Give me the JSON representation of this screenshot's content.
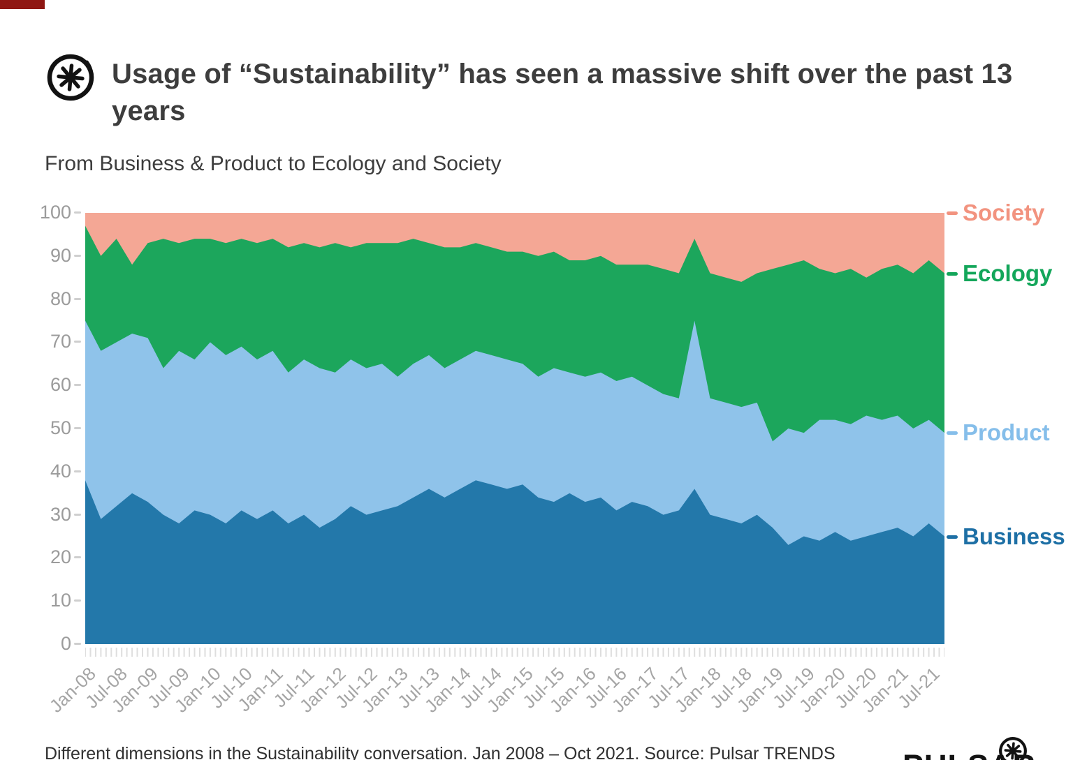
{
  "page": {
    "background": "#ffffff",
    "artifact_bar_color": "#8f1713"
  },
  "header": {
    "logo_icon": "pulsar-asterisk-logo",
    "title": "Usage of “Sustainability” has seen a massive shift over the past 13 years",
    "subtitle": "From Business & Product to Ecology and Society"
  },
  "footer": {
    "caption": "Different dimensions in the Sustainability conversation. Jan 2008 – Oct 2021. Source: Pulsar TRENDS",
    "brand_wordmark": "PULSAR",
    "brand_icon": "pulsar-asterisk-logo"
  },
  "chart_data": {
    "type": "area",
    "stacked": true,
    "unit": "% share",
    "x_start": "Jan-2008",
    "x_end": "Oct-2021",
    "x_step_months": 3,
    "ylim": [
      0,
      100
    ],
    "y_ticks": [
      0,
      10,
      20,
      30,
      40,
      50,
      60,
      70,
      80,
      90,
      100
    ],
    "grid": false,
    "legend_position": "right-edge",
    "x_tick_labels": [
      "Jan-08",
      "Jul-08",
      "Jan-09",
      "Jul-09",
      "Jan-10",
      "Jul-10",
      "Jan-11",
      "Jul-11",
      "Jan-12",
      "Jul-12",
      "Jan-13",
      "Jul-13",
      "Jan-14",
      "Jul-14",
      "Jan-15",
      "Jul-15",
      "Jan-16",
      "Jul-16",
      "Jan-17",
      "Jul-17",
      "Jan-18",
      "Jul-18",
      "Jan-19",
      "Jul-19",
      "Jan-20",
      "Jul-20",
      "Jan-21",
      "Jul-21"
    ],
    "series": [
      {
        "name": "Business",
        "color": "#2378aa",
        "label_color": "#1d6fa5",
        "values": [
          38,
          29,
          32,
          35,
          33,
          30,
          28,
          31,
          30,
          28,
          31,
          29,
          31,
          28,
          30,
          27,
          29,
          32,
          30,
          31,
          32,
          34,
          36,
          34,
          36,
          38,
          37,
          36,
          37,
          34,
          33,
          35,
          33,
          34,
          31,
          33,
          32,
          30,
          31,
          36,
          30,
          29,
          28,
          30,
          27,
          23,
          25,
          24,
          26,
          24,
          25,
          26,
          27,
          25,
          28,
          25
        ]
      },
      {
        "name": "Product",
        "color": "#8fc3ea",
        "label_color": "#85beea",
        "values": [
          37,
          39,
          38,
          37,
          38,
          34,
          40,
          35,
          40,
          39,
          38,
          37,
          37,
          35,
          36,
          37,
          34,
          34,
          34,
          34,
          30,
          31,
          31,
          30,
          30,
          30,
          30,
          30,
          28,
          28,
          31,
          28,
          29,
          29,
          30,
          29,
          28,
          28,
          26,
          39,
          27,
          27,
          27,
          26,
          20,
          27,
          24,
          28,
          26,
          27,
          28,
          26,
          26,
          25,
          24,
          24
        ]
      },
      {
        "name": "Ecology",
        "color": "#1ca65c",
        "label_color": "#13a65a",
        "values": [
          22,
          22,
          24,
          16,
          22,
          30,
          25,
          28,
          24,
          26,
          25,
          27,
          26,
          29,
          27,
          28,
          30,
          26,
          29,
          28,
          31,
          29,
          26,
          28,
          26,
          25,
          25,
          25,
          26,
          28,
          27,
          26,
          27,
          27,
          27,
          26,
          28,
          29,
          29,
          19,
          29,
          29,
          29,
          30,
          40,
          38,
          40,
          35,
          34,
          36,
          32,
          35,
          35,
          36,
          37,
          37
        ]
      },
      {
        "name": "Society",
        "color": "#f4a795",
        "label_color": "#f2937f",
        "values": [
          3,
          10,
          6,
          12,
          7,
          6,
          7,
          6,
          6,
          7,
          6,
          7,
          6,
          8,
          7,
          8,
          7,
          8,
          7,
          7,
          7,
          6,
          7,
          8,
          8,
          7,
          8,
          9,
          9,
          10,
          9,
          11,
          11,
          10,
          12,
          12,
          12,
          13,
          14,
          6,
          14,
          15,
          16,
          14,
          13,
          12,
          11,
          13,
          14,
          13,
          15,
          13,
          12,
          14,
          11,
          14
        ]
      }
    ]
  }
}
